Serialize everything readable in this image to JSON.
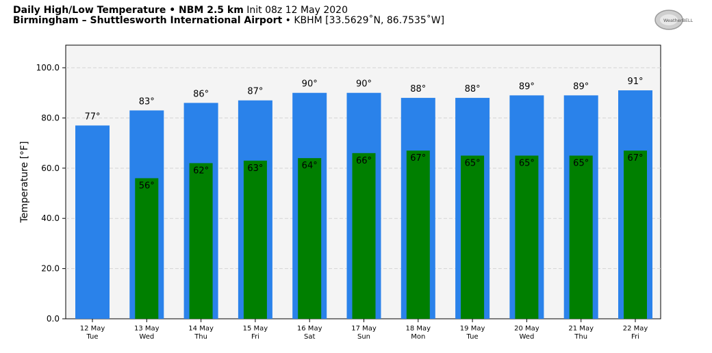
{
  "header": {
    "line1_bold": "Daily High/Low Temperature • NBM 2.5 km",
    "line1_normal": "Init 08z 12 May 2020",
    "line2_bold": "Birmingham – Shuttlesworth International Airport",
    "line2_normal": "• KBHM [33.5629˚N, 86.7535˚W]"
  },
  "logo": {
    "text": "WeatherBELL"
  },
  "colors": {
    "high": "#2a82ea",
    "low": "#007f00",
    "plot_bg": "#f4f4f4",
    "grid": "#d3d3d3"
  },
  "chart_data": {
    "type": "bar",
    "ylabel": "Temperature [°F]",
    "ylim": [
      0,
      109
    ],
    "yticks": [
      0,
      20,
      40,
      60,
      80,
      100
    ],
    "ytick_labels": [
      "0.0",
      "20.0",
      "40.0",
      "60.0",
      "80.0",
      "100.0"
    ],
    "grid": true,
    "categories": [
      "12 May",
      "13 May",
      "14 May",
      "15 May",
      "16 May",
      "17 May",
      "18 May",
      "19 May",
      "20 May",
      "21 May",
      "22 May"
    ],
    "weekdays": [
      "Tue",
      "Wed",
      "Thu",
      "Fri",
      "Sat",
      "Sun",
      "Mon",
      "Tue",
      "Wed",
      "Thu",
      "Fri"
    ],
    "series": [
      {
        "values": [
          77,
          83,
          86,
          87,
          90,
          90,
          88,
          88,
          89,
          89,
          91
        ],
        "labels": [
          "77°",
          "83°",
          "86°",
          "87°",
          "90°",
          "90°",
          "88°",
          "88°",
          "89°",
          "89°",
          "91°"
        ]
      },
      {
        "values": [
          null,
          56,
          62,
          63,
          64,
          66,
          67,
          65,
          65,
          65,
          67
        ],
        "labels": [
          "",
          "56°",
          "62°",
          "63°",
          "64°",
          "66°",
          "67°",
          "65°",
          "65°",
          "65°",
          "67°"
        ]
      }
    ]
  }
}
